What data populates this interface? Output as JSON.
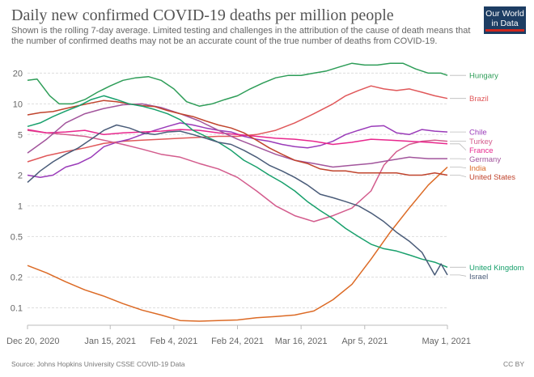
{
  "header": {
    "title": "Daily new confirmed COVID-19 deaths per million people",
    "subtitle": "Shown is the rolling 7-day average. Limited testing and challenges in the attribution of the cause of death means that the number of confirmed deaths may not be an accurate count of the true number of deaths from COVID-19.",
    "logo_line1": "Our World",
    "logo_line2": "in Data"
  },
  "footer": {
    "source": "Source: Johns Hopkins University CSSE COVID-19 Data",
    "license": "CC BY"
  },
  "chart_data": {
    "type": "line",
    "title": "Daily new confirmed COVID-19 deaths per million people",
    "y_scale": "log",
    "ylim": [
      0.07,
      28
    ],
    "x_range_days": [
      0,
      132
    ],
    "x_ticks": [
      {
        "day": 0,
        "label": "Dec 20, 2020"
      },
      {
        "day": 26,
        "label": "Jan 15, 2021"
      },
      {
        "day": 46,
        "label": "Feb 4, 2021"
      },
      {
        "day": 66,
        "label": "Feb 24, 2021"
      },
      {
        "day": 86,
        "label": "Mar 16, 2021"
      },
      {
        "day": 106,
        "label": "Apr 5, 2021"
      },
      {
        "day": 132,
        "label": "May 1, 2021"
      }
    ],
    "y_ticks": [
      {
        "value": 20,
        "label": "20"
      },
      {
        "value": 10,
        "label": "10"
      },
      {
        "value": 5,
        "label": "5"
      },
      {
        "value": 2,
        "label": "2"
      },
      {
        "value": 1,
        "label": "1"
      },
      {
        "value": 0.5,
        "label": "0.5"
      },
      {
        "value": 0.2,
        "label": "0.2"
      },
      {
        "value": 0.1,
        "label": "0.1"
      }
    ],
    "series": [
      {
        "name": "Hungary",
        "color": "#2e9d58",
        "label_value": 19.0,
        "x": [
          0,
          3,
          7,
          10,
          14,
          18,
          22,
          26,
          30,
          34,
          38,
          42,
          46,
          50,
          54,
          58,
          62,
          66,
          70,
          74,
          78,
          82,
          86,
          90,
          94,
          98,
          102,
          106,
          110,
          114,
          118,
          122,
          126,
          130,
          132
        ],
        "y": [
          17,
          17.5,
          12,
          10,
          10,
          11,
          13,
          15,
          17,
          18,
          18.5,
          17,
          14,
          10.5,
          9.5,
          10,
          11,
          12,
          14,
          16,
          18,
          19,
          19,
          20,
          21,
          23,
          25,
          24,
          24,
          25,
          25,
          22,
          20,
          20,
          19
        ]
      },
      {
        "name": "Brazil",
        "color": "#e0585a",
        "label_value": 11.3,
        "x": [
          0,
          6,
          12,
          18,
          24,
          30,
          36,
          42,
          48,
          54,
          60,
          66,
          72,
          78,
          84,
          90,
          96,
          100,
          104,
          108,
          112,
          116,
          120,
          124,
          128,
          132
        ],
        "y": [
          2.7,
          3.1,
          3.4,
          3.7,
          4.1,
          4.3,
          4.4,
          4.5,
          4.6,
          4.7,
          4.8,
          4.8,
          5,
          5.5,
          6.5,
          8,
          10,
          12,
          13.5,
          15,
          14,
          13.5,
          14,
          13,
          12,
          11.3
        ]
      },
      {
        "name": "Chile",
        "color": "#9a3bb9",
        "label_value": 5.3,
        "x": [
          0,
          4,
          8,
          12,
          16,
          20,
          24,
          28,
          32,
          36,
          40,
          44,
          48,
          52,
          56,
          60,
          64,
          68,
          72,
          76,
          80,
          84,
          88,
          92,
          96,
          100,
          104,
          108,
          112,
          116,
          120,
          124,
          128,
          132
        ],
        "y": [
          2.0,
          1.9,
          2.0,
          2.4,
          2.6,
          3.0,
          3.8,
          4.2,
          4.5,
          5.0,
          5.5,
          6.0,
          6.5,
          6.2,
          5.8,
          5.5,
          5.3,
          4.8,
          4.5,
          4.3,
          4.0,
          3.8,
          3.7,
          3.9,
          4.3,
          5.0,
          5.5,
          6.0,
          6.1,
          5.2,
          5.0,
          5.6,
          5.4,
          5.3
        ]
      },
      {
        "name": "Turkey",
        "color": "#d35c8d",
        "label_value": 4.3,
        "x": [
          0,
          6,
          12,
          18,
          24,
          30,
          36,
          42,
          48,
          54,
          60,
          66,
          72,
          78,
          84,
          90,
          96,
          102,
          108,
          112,
          116,
          120,
          124,
          128,
          132
        ],
        "y": [
          5.5,
          5.2,
          5.0,
          4.8,
          4.4,
          4.0,
          3.6,
          3.2,
          3.0,
          2.6,
          2.3,
          1.9,
          1.4,
          1.0,
          0.8,
          0.7,
          0.8,
          0.95,
          1.4,
          2.5,
          3.4,
          4.0,
          4.3,
          4.4,
          4.3
        ]
      },
      {
        "name": "France",
        "color": "#e8278d",
        "label_value": 4.05,
        "x": [
          0,
          6,
          12,
          18,
          24,
          30,
          36,
          42,
          48,
          54,
          60,
          66,
          72,
          78,
          84,
          90,
          96,
          102,
          108,
          114,
          120,
          126,
          132
        ],
        "y": [
          5.6,
          5.2,
          5.3,
          5.5,
          5.0,
          5.2,
          5.3,
          5.4,
          5.6,
          5.5,
          5.2,
          5.0,
          4.8,
          4.6,
          4.5,
          4.3,
          4.0,
          4.2,
          4.5,
          4.4,
          4.3,
          4.2,
          4.05
        ]
      },
      {
        "name": "Germany",
        "color": "#a2559c",
        "label_value": 2.9,
        "x": [
          0,
          6,
          12,
          18,
          24,
          30,
          36,
          42,
          48,
          54,
          60,
          66,
          72,
          78,
          84,
          90,
          96,
          102,
          108,
          114,
          120,
          126,
          132
        ],
        "y": [
          3.3,
          4.5,
          6.5,
          8.0,
          9.0,
          9.8,
          10,
          9.2,
          8.0,
          6.8,
          5.5,
          4.5,
          3.8,
          3.2,
          2.8,
          2.6,
          2.4,
          2.5,
          2.6,
          2.8,
          3.0,
          2.9,
          2.9
        ]
      },
      {
        "name": "India",
        "color": "#dc6a25",
        "label_value": 2.4,
        "x": [
          0,
          6,
          12,
          18,
          24,
          30,
          36,
          42,
          48,
          54,
          60,
          66,
          72,
          78,
          84,
          90,
          96,
          102,
          108,
          114,
          120,
          126,
          132
        ],
        "y": [
          0.26,
          0.22,
          0.18,
          0.15,
          0.13,
          0.11,
          0.095,
          0.085,
          0.075,
          0.074,
          0.075,
          0.076,
          0.08,
          0.082,
          0.085,
          0.093,
          0.12,
          0.17,
          0.3,
          0.55,
          0.95,
          1.6,
          2.4
        ]
      },
      {
        "name": "United States",
        "color": "#c0442d",
        "label_value": 2.0,
        "x": [
          0,
          4,
          8,
          12,
          16,
          20,
          24,
          28,
          32,
          36,
          40,
          44,
          48,
          52,
          56,
          60,
          64,
          68,
          72,
          76,
          80,
          84,
          88,
          92,
          96,
          100,
          104,
          108,
          112,
          116,
          120,
          124,
          128,
          132
        ],
        "y": [
          7.8,
          8.2,
          8.4,
          9.0,
          9.6,
          10.2,
          10.8,
          10.5,
          10.0,
          9.6,
          9.4,
          8.6,
          8.0,
          7.5,
          6.8,
          6.2,
          5.8,
          5.2,
          4.4,
          3.7,
          3.2,
          2.8,
          2.6,
          2.3,
          2.2,
          2.2,
          2.1,
          2.1,
          2.1,
          2.1,
          2.0,
          2.0,
          2.1,
          2.0
        ]
      },
      {
        "name": "United Kingdom",
        "color": "#18a06c",
        "label_value": 0.25,
        "x": [
          0,
          4,
          8,
          12,
          16,
          20,
          24,
          28,
          32,
          36,
          40,
          44,
          48,
          52,
          56,
          60,
          64,
          68,
          72,
          76,
          80,
          84,
          88,
          92,
          96,
          100,
          104,
          108,
          112,
          116,
          120,
          124,
          128,
          132
        ],
        "y": [
          6.0,
          6.5,
          7.5,
          8.5,
          9.5,
          11.0,
          12.0,
          11.0,
          10.0,
          9.5,
          8.8,
          8.0,
          7.0,
          5.5,
          4.8,
          4.2,
          3.5,
          2.8,
          2.4,
          2.0,
          1.7,
          1.4,
          1.1,
          0.9,
          0.75,
          0.6,
          0.5,
          0.42,
          0.38,
          0.36,
          0.33,
          0.3,
          0.28,
          0.25
        ]
      },
      {
        "name": "Israel",
        "color": "#4a5c79",
        "label_value": 0.21,
        "x": [
          0,
          4,
          8,
          12,
          16,
          20,
          24,
          28,
          32,
          36,
          40,
          44,
          48,
          52,
          56,
          60,
          64,
          68,
          72,
          76,
          80,
          84,
          88,
          92,
          96,
          100,
          104,
          108,
          112,
          116,
          120,
          124,
          128,
          130,
          132
        ],
        "y": [
          1.7,
          2.2,
          2.7,
          3.2,
          3.7,
          4.5,
          5.5,
          6.2,
          5.8,
          5.2,
          5.0,
          5.3,
          5.4,
          5.0,
          4.6,
          4.2,
          4.0,
          3.5,
          3.0,
          2.5,
          2.2,
          1.9,
          1.6,
          1.3,
          1.2,
          1.1,
          1.0,
          0.85,
          0.7,
          0.55,
          0.45,
          0.35,
          0.21,
          0.27,
          0.21
        ]
      }
    ]
  }
}
